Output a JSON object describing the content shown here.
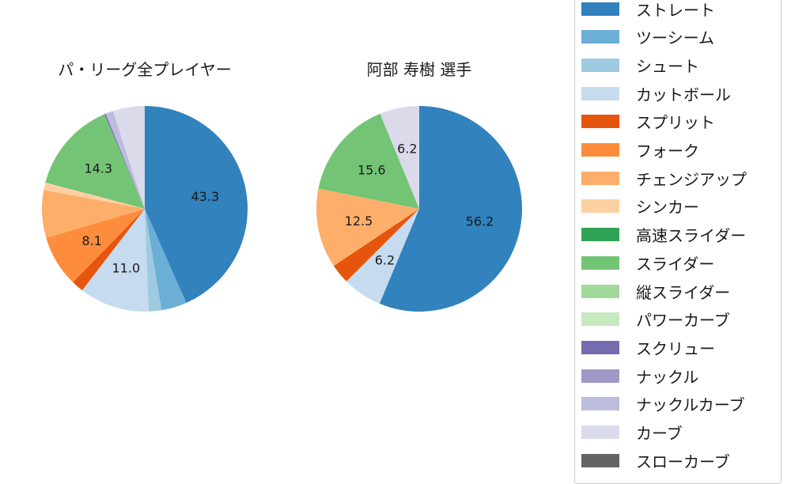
{
  "chart_data": [
    {
      "type": "pie",
      "title": "パ・リーグ全プレイヤー",
      "start_angle": 90,
      "direction": "clockwise",
      "slices": [
        {
          "label": "ストレート",
          "value": 43.3,
          "color": "#3182bd",
          "shown": "43.3"
        },
        {
          "label": "ツーシーム",
          "value": 4.0,
          "color": "#6baed6",
          "shown": ""
        },
        {
          "label": "シュート",
          "value": 2.0,
          "color": "#9ecae1",
          "shown": ""
        },
        {
          "label": "カットボール",
          "value": 11.0,
          "color": "#c6dbef",
          "shown": "11.0"
        },
        {
          "label": "スプリット",
          "value": 1.9,
          "color": "#e6550d",
          "shown": ""
        },
        {
          "label": "フォーク",
          "value": 8.1,
          "color": "#fd8d3c",
          "shown": "8.1"
        },
        {
          "label": "チェンジアップ",
          "value": 7.5,
          "color": "#fdae6b",
          "shown": ""
        },
        {
          "label": "シンカー",
          "value": 1.2,
          "color": "#fdd0a2",
          "shown": ""
        },
        {
          "label": "高速スライダー",
          "value": 0.1,
          "color": "#31a354",
          "shown": ""
        },
        {
          "label": "スライダー",
          "value": 14.3,
          "color": "#74c476",
          "shown": "14.3"
        },
        {
          "label": "縦スライダー",
          "value": 0.0,
          "color": "#a1d99b",
          "shown": ""
        },
        {
          "label": "パワーカーブ",
          "value": 0.0,
          "color": "#c7e9c0",
          "shown": ""
        },
        {
          "label": "スクリュー",
          "value": 0.2,
          "color": "#756bb1",
          "shown": ""
        },
        {
          "label": "ナックル",
          "value": 0.0,
          "color": "#9e9ac8",
          "shown": ""
        },
        {
          "label": "ナックルカーブ",
          "value": 1.2,
          "color": "#bcbddc",
          "shown": ""
        },
        {
          "label": "カーブ",
          "value": 5.0,
          "color": "#dadaeb",
          "shown": ""
        },
        {
          "label": "スローカーブ",
          "value": 0.0,
          "color": "#636363",
          "shown": ""
        }
      ]
    },
    {
      "type": "pie",
      "title": "阿部 寿樹  選手",
      "start_angle": 90,
      "direction": "clockwise",
      "slices": [
        {
          "label": "ストレート",
          "value": 56.2,
          "color": "#3182bd",
          "shown": "56.2"
        },
        {
          "label": "カットボール",
          "value": 6.2,
          "color": "#c6dbef",
          "shown": "6.2"
        },
        {
          "label": "スプリット",
          "value": 3.1,
          "color": "#e6550d",
          "shown": ""
        },
        {
          "label": "チェンジアップ",
          "value": 12.5,
          "color": "#fdae6b",
          "shown": "12.5"
        },
        {
          "label": "スライダー",
          "value": 15.6,
          "color": "#74c476",
          "shown": "15.6"
        },
        {
          "label": "カーブ",
          "value": 6.2,
          "color": "#dadaeb",
          "shown": "6.2"
        }
      ]
    }
  ],
  "legend": {
    "items": [
      {
        "label": "ストレート",
        "color": "#3182bd"
      },
      {
        "label": "ツーシーム",
        "color": "#6baed6"
      },
      {
        "label": "シュート",
        "color": "#9ecae1"
      },
      {
        "label": "カットボール",
        "color": "#c6dbef"
      },
      {
        "label": "スプリット",
        "color": "#e6550d"
      },
      {
        "label": "フォーク",
        "color": "#fd8d3c"
      },
      {
        "label": "チェンジアップ",
        "color": "#fdae6b"
      },
      {
        "label": "シンカー",
        "color": "#fdd0a2"
      },
      {
        "label": "高速スライダー",
        "color": "#31a354"
      },
      {
        "label": "スライダー",
        "color": "#74c476"
      },
      {
        "label": "縦スライダー",
        "color": "#a1d99b"
      },
      {
        "label": "パワーカーブ",
        "color": "#c7e9c0"
      },
      {
        "label": "スクリュー",
        "color": "#756bb1"
      },
      {
        "label": "ナックル",
        "color": "#9e9ac8"
      },
      {
        "label": "ナックルカーブ",
        "color": "#bcbddc"
      },
      {
        "label": "カーブ",
        "color": "#dadaeb"
      },
      {
        "label": "スローカーブ",
        "color": "#636363"
      }
    ]
  }
}
